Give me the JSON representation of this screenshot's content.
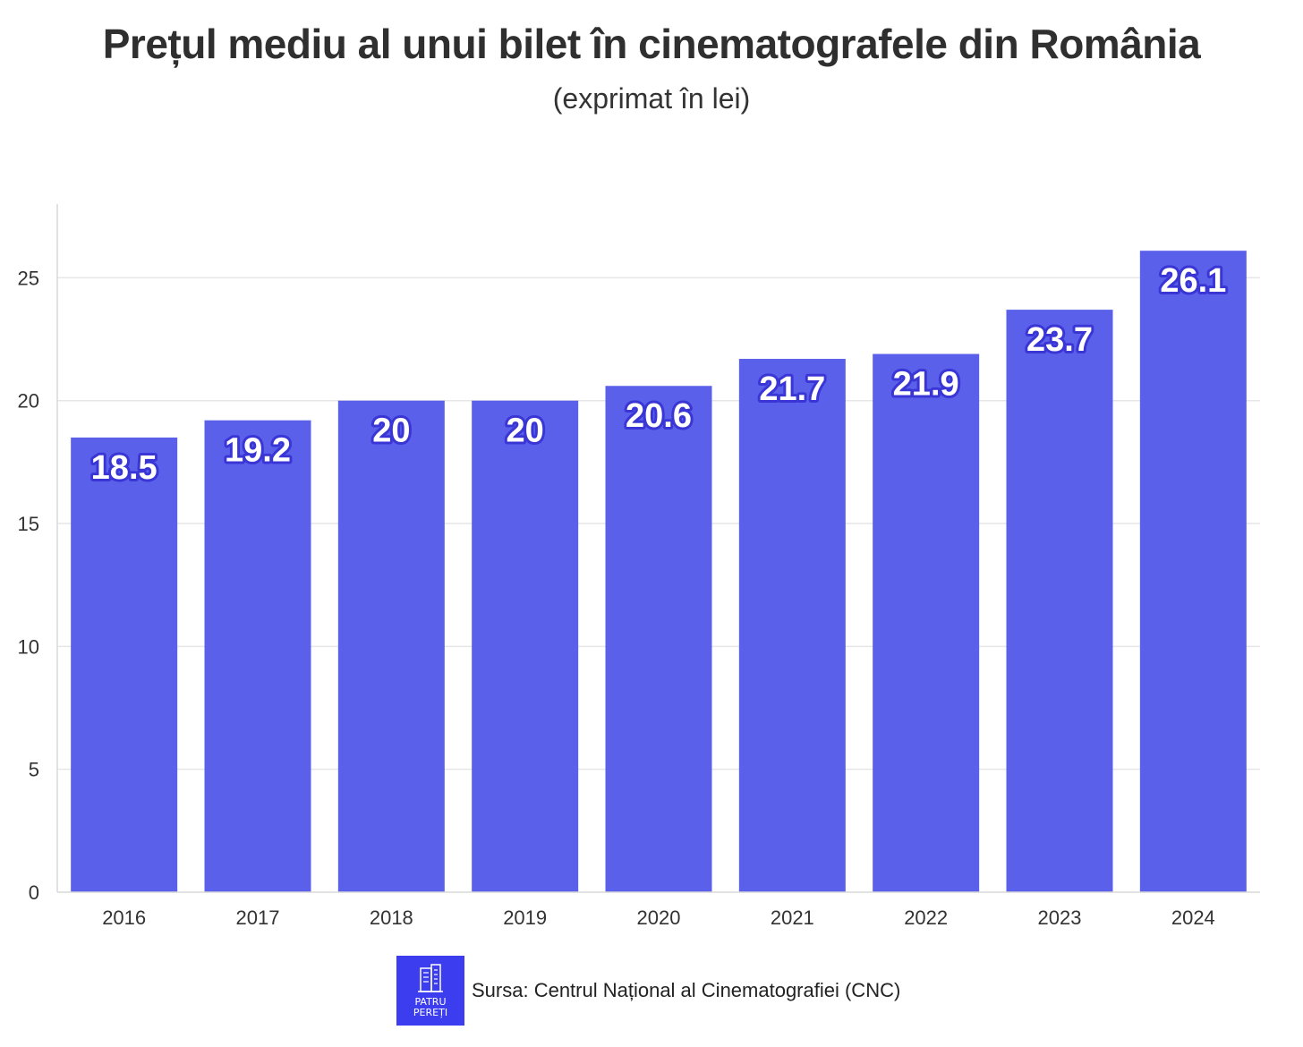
{
  "title": "Prețul mediu al unui bilet în cinematografele din România",
  "subtitle": "(exprimat în lei)",
  "footer": {
    "source": "Sursa: Centrul Național al Cinematografiei (CNC)",
    "logo_line1": "PATRU",
    "logo_line2": "PEREȚI",
    "logo_icon": "building-icon"
  },
  "colors": {
    "bar": "#5b60ea",
    "label_fill": "#ffffff",
    "label_stroke": "#3a36d6",
    "grid": "#e6e6e6",
    "logo_bg": "#3d3df0"
  },
  "chart_data": {
    "type": "bar",
    "title": "Prețul mediu al unui bilet în cinematografele din România",
    "subtitle": "(exprimat în lei)",
    "categories": [
      "2016",
      "2017",
      "2018",
      "2019",
      "2020",
      "2021",
      "2022",
      "2023",
      "2024"
    ],
    "values": [
      18.5,
      19.2,
      20,
      20,
      20.6,
      21.7,
      21.9,
      23.7,
      26.1
    ],
    "data_labels": [
      "18.5",
      "19.2",
      "20",
      "20",
      "20.6",
      "21.7",
      "21.9",
      "23.7",
      "26.1"
    ],
    "xlabel": "",
    "ylabel": "",
    "ylim": [
      0,
      28
    ],
    "yticks": [
      0,
      5,
      10,
      15,
      20,
      25
    ],
    "grid": true,
    "legend": "none"
  }
}
